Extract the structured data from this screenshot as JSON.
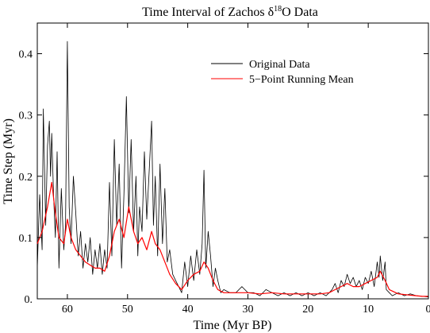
{
  "chart_data": {
    "type": "line",
    "title": {
      "prefix": "Time Interval of Zachos δ",
      "superscript": "18",
      "suffix": "O Data"
    },
    "xlabel": "Time (Myr BP)",
    "ylabel": "Time Step (Myr)",
    "xlim": [
      65,
      0
    ],
    "ylim": [
      0,
      0.45
    ],
    "x_ticks": [
      60,
      50,
      40,
      30,
      20,
      10,
      0
    ],
    "x_tick_labels": [
      "60",
      "50",
      "40",
      "30",
      "20",
      "10",
      "0"
    ],
    "y_ticks": [
      0,
      0.1,
      0.2,
      0.3,
      0.4
    ],
    "y_tick_labels": [
      "0.",
      "0.1",
      "0.2",
      "0.3",
      "0.4"
    ],
    "grid": false,
    "legend_position": "top-right",
    "series": [
      {
        "name": "Original Data",
        "color": "#000000",
        "x": [
          65.0,
          64.6,
          64.2,
          64.0,
          63.6,
          63.3,
          63.0,
          62.8,
          62.6,
          62.3,
          62.0,
          61.7,
          61.4,
          61.0,
          60.6,
          60.3,
          60.0,
          59.7,
          59.4,
          59.0,
          58.6,
          58.2,
          57.8,
          57.4,
          57.0,
          56.6,
          56.2,
          55.8,
          55.4,
          55.0,
          54.6,
          54.2,
          53.8,
          53.4,
          53.0,
          52.6,
          52.2,
          51.8,
          51.4,
          51.0,
          50.6,
          50.2,
          49.8,
          49.4,
          49.0,
          48.6,
          48.3,
          48.0,
          47.6,
          47.2,
          46.8,
          46.4,
          46.0,
          45.7,
          45.4,
          45.0,
          44.6,
          44.2,
          43.8,
          43.4,
          43.0,
          42.5,
          42.0,
          41.5,
          41.0,
          40.5,
          40.0,
          39.5,
          39.0,
          38.5,
          38.0,
          37.6,
          37.3,
          37.0,
          36.6,
          36.2,
          35.8,
          35.4,
          35.0,
          34.5,
          34.0,
          33.0,
          32.0,
          31.0,
          30.0,
          29.0,
          28.0,
          27.0,
          26.0,
          25.0,
          24.0,
          23.0,
          22.0,
          21.0,
          20.0,
          19.0,
          18.0,
          17.0,
          16.5,
          16.0,
          15.5,
          15.0,
          14.5,
          14.0,
          13.5,
          13.0,
          12.5,
          12.0,
          11.5,
          11.0,
          10.5,
          10.0,
          9.5,
          9.0,
          8.5,
          8.2,
          8.0,
          7.6,
          7.2,
          7.0,
          6.5,
          6.0,
          5.0,
          4.0,
          3.0,
          2.0,
          1.0,
          0.0
        ],
        "y": [
          0.05,
          0.17,
          0.08,
          0.31,
          0.12,
          0.25,
          0.29,
          0.2,
          0.27,
          0.17,
          0.1,
          0.24,
          0.05,
          0.18,
          0.08,
          0.12,
          0.42,
          0.15,
          0.09,
          0.2,
          0.14,
          0.07,
          0.11,
          0.05,
          0.09,
          0.06,
          0.1,
          0.04,
          0.08,
          0.05,
          0.09,
          0.04,
          0.08,
          0.05,
          0.19,
          0.07,
          0.26,
          0.12,
          0.22,
          0.05,
          0.17,
          0.33,
          0.14,
          0.26,
          0.11,
          0.2,
          0.07,
          0.15,
          0.11,
          0.24,
          0.13,
          0.21,
          0.29,
          0.12,
          0.2,
          0.07,
          0.22,
          0.09,
          0.18,
          0.06,
          0.08,
          0.04,
          0.03,
          0.02,
          0.01,
          0.06,
          0.02,
          0.07,
          0.03,
          0.08,
          0.04,
          0.09,
          0.21,
          0.05,
          0.11,
          0.07,
          0.02,
          0.05,
          0.03,
          0.01,
          0.015,
          0.01,
          0.01,
          0.02,
          0.01,
          0.01,
          0.005,
          0.015,
          0.01,
          0.005,
          0.01,
          0.005,
          0.01,
          0.005,
          0.01,
          0.005,
          0.01,
          0.005,
          0.01,
          0.015,
          0.025,
          0.01,
          0.03,
          0.02,
          0.04,
          0.025,
          0.035,
          0.02,
          0.03,
          0.015,
          0.035,
          0.025,
          0.045,
          0.02,
          0.06,
          0.035,
          0.07,
          0.03,
          0.06,
          0.015,
          0.01,
          0.005,
          0.01,
          0.005,
          0.008,
          0.005,
          0.004,
          0.003
        ]
      },
      {
        "name": "5−Point Running Mean",
        "color": "#ff0000",
        "x": [
          65.0,
          64.2,
          63.3,
          62.6,
          62.0,
          61.4,
          60.6,
          60.0,
          59.4,
          58.6,
          57.8,
          57.0,
          56.2,
          55.4,
          54.6,
          53.8,
          53.0,
          52.2,
          51.4,
          50.6,
          49.8,
          49.0,
          48.3,
          47.6,
          46.8,
          46.0,
          45.4,
          44.6,
          43.8,
          43.0,
          42.0,
          41.0,
          40.0,
          39.0,
          38.0,
          37.3,
          36.6,
          35.8,
          35.0,
          34.0,
          32.0,
          30.0,
          28.0,
          26.0,
          24.0,
          22.0,
          20.0,
          18.0,
          16.5,
          15.5,
          14.5,
          13.5,
          12.5,
          11.5,
          10.5,
          9.5,
          8.5,
          8.0,
          7.2,
          6.5,
          5.0,
          3.0,
          1.0,
          0.0
        ],
        "y": [
          0.09,
          0.11,
          0.15,
          0.19,
          0.14,
          0.1,
          0.09,
          0.13,
          0.1,
          0.08,
          0.07,
          0.06,
          0.055,
          0.05,
          0.05,
          0.045,
          0.07,
          0.11,
          0.13,
          0.1,
          0.15,
          0.11,
          0.09,
          0.1,
          0.08,
          0.11,
          0.09,
          0.08,
          0.06,
          0.04,
          0.025,
          0.015,
          0.03,
          0.04,
          0.045,
          0.06,
          0.05,
          0.03,
          0.015,
          0.01,
          0.01,
          0.01,
          0.008,
          0.01,
          0.008,
          0.008,
          0.008,
          0.008,
          0.01,
          0.015,
          0.02,
          0.025,
          0.02,
          0.02,
          0.025,
          0.03,
          0.035,
          0.045,
          0.03,
          0.015,
          0.008,
          0.006,
          0.004,
          0.004
        ]
      }
    ]
  }
}
